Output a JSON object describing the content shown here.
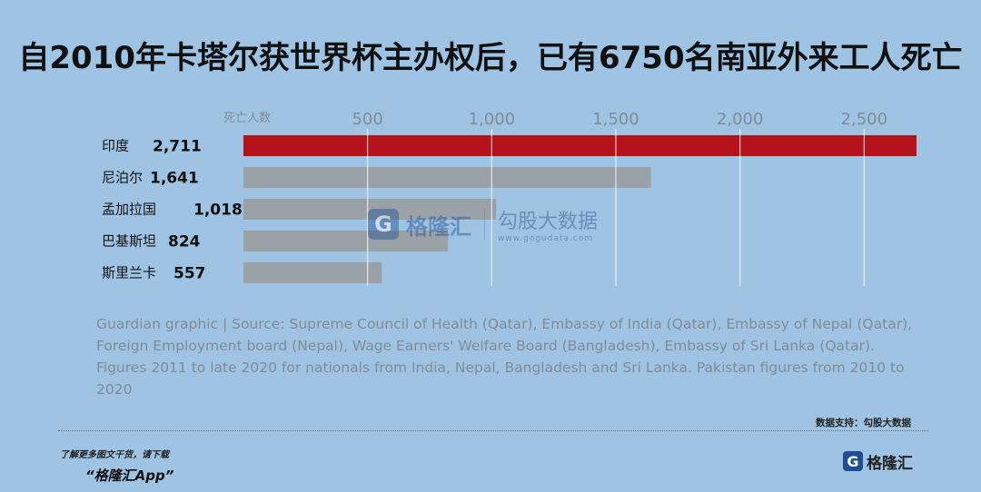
{
  "headline": "自2010年卡塔尔获世界杯主办权后，已有6750名南亚外来工人死亡",
  "chart_data": {
    "type": "bar",
    "orientation": "horizontal",
    "axis_label": "死亡人数",
    "ticks": [
      "500",
      "1,000",
      "1,500",
      "2,000",
      "2,500"
    ],
    "tick_values": [
      500,
      1000,
      1500,
      2000,
      2500
    ],
    "xlim": [
      0,
      2711
    ],
    "categories": [
      "印度",
      "尼泊尔",
      "孟加拉国",
      "巴基斯坦",
      "斯里兰卡"
    ],
    "values": [
      2711,
      1641,
      1018,
      824,
      557
    ],
    "value_labels": [
      "2,711",
      "1,641",
      "1,018",
      "824",
      "557"
    ],
    "colors": [
      "#b5121b",
      "#9aa2a8",
      "#9aa2a8",
      "#9aa2a8",
      "#9aa2a8"
    ],
    "grid": true
  },
  "source_lines": [
    "Guardian graphic | Source: Supreme Council of Health (Qatar), Embassy of India (Qatar), Embassy of Nepal (Qatar),",
    "Foreign Employment board (Nepal), Wage Earners' Welfare Board (Bangladesh), Embassy of Sri Lanka (Qatar).",
    "Figures 2011 to late 2020 for nationals from India, Nepal, Bangladesh and Sri Lanka. Pakistan figures from 2010 to",
    "2020"
  ],
  "data_support": "数据支持：勾股大数据",
  "footer_note": "了解更多图文干货，请下载",
  "footer_app": "“格隆汇App”",
  "logo_text": "格隆汇",
  "watermark": {
    "brand": "格隆汇",
    "partner": "勾股大数据",
    "partner_url": "www.gogudata.com"
  }
}
